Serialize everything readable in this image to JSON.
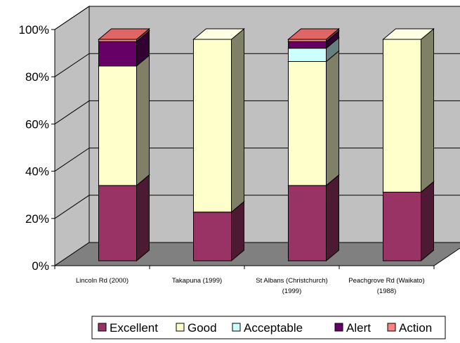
{
  "chart_data": {
    "type": "bar",
    "stacked": true,
    "percent": true,
    "three_d": true,
    "categories": [
      [
        "Lincoln Rd (2000)"
      ],
      [
        "Takapuna (1999)"
      ],
      [
        "St Albans (Christchurch)",
        "(1999)"
      ],
      [
        "Peachgrove Rd (Waikato)",
        "(1988)"
      ]
    ],
    "series": [
      {
        "name": "Excellent",
        "values": [
          34,
          22,
          34,
          31
        ]
      },
      {
        "name": "Good",
        "values": [
          54,
          78,
          56,
          69
        ]
      },
      {
        "name": "Acceptable",
        "values": [
          0,
          0,
          6,
          0
        ]
      },
      {
        "name": "Alert",
        "values": [
          11,
          0,
          3,
          0
        ]
      },
      {
        "name": "Action",
        "values": [
          1,
          0,
          1,
          0
        ]
      }
    ],
    "yticks": [
      "0%",
      "20%",
      "40%",
      "60%",
      "80%",
      "100%"
    ],
    "ylim": [
      0,
      100
    ],
    "grid": true,
    "legend_position": "bottom-right"
  },
  "colors": {
    "Excellent": {
      "front": "#993366",
      "side": "#4d1a33",
      "top": "#b3477f"
    },
    "Good": {
      "front": "#ffffcc",
      "side": "#808066",
      "top": "#ffffe6"
    },
    "Acceptable": {
      "front": "#ccffff",
      "side": "#668080",
      "top": "#e6ffff"
    },
    "Alert": {
      "front": "#660066",
      "side": "#330033",
      "top": "#803380"
    },
    "Action": {
      "front": "#ff8080",
      "side": "#804040",
      "top": "#e06666"
    },
    "wall": "#c0c0c0",
    "floor": "#808080"
  }
}
